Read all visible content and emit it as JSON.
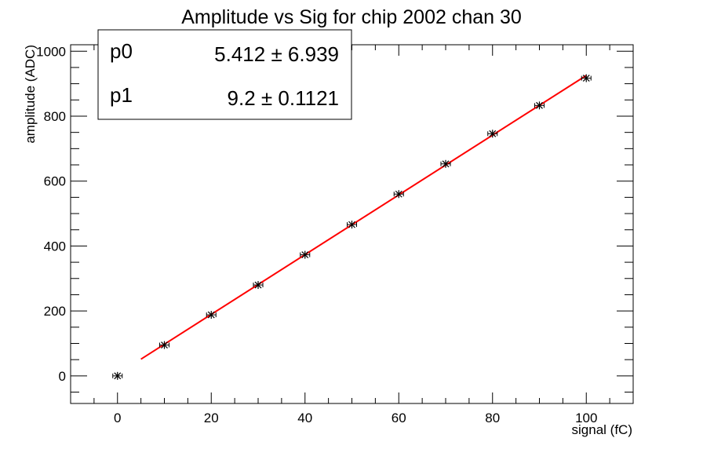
{
  "chart_data": {
    "type": "scatter",
    "title": "Amplitude vs Sig for chip 2002 chan 30",
    "xlabel": "signal (fC)",
    "ylabel": "amplitude (ADC)",
    "xlim": [
      -10,
      110
    ],
    "ylim": [
      -85,
      1020
    ],
    "x_ticks": [
      0,
      20,
      40,
      60,
      80,
      100
    ],
    "y_ticks": [
      0,
      200,
      400,
      600,
      800,
      1000
    ],
    "grid": false,
    "series": [
      {
        "marker": "star",
        "color": "#000000",
        "points": [
          {
            "x": 0,
            "y": 0
          },
          {
            "x": 10,
            "y": 95
          },
          {
            "x": 20,
            "y": 188
          },
          {
            "x": 30,
            "y": 280
          },
          {
            "x": 40,
            "y": 373
          },
          {
            "x": 50,
            "y": 466
          },
          {
            "x": 60,
            "y": 560
          },
          {
            "x": 70,
            "y": 653
          },
          {
            "x": 80,
            "y": 746
          },
          {
            "x": 90,
            "y": 833
          },
          {
            "x": 100,
            "y": 917
          }
        ]
      }
    ],
    "fit": {
      "color": "#ff0000",
      "x_range": [
        5,
        100
      ],
      "p0": 5.412,
      "p1": 9.2
    },
    "stats": [
      {
        "name": "p0",
        "value": "5.412 ± 6.939"
      },
      {
        "name": "p1",
        "value": "9.2 ± 0.1121"
      }
    ]
  }
}
